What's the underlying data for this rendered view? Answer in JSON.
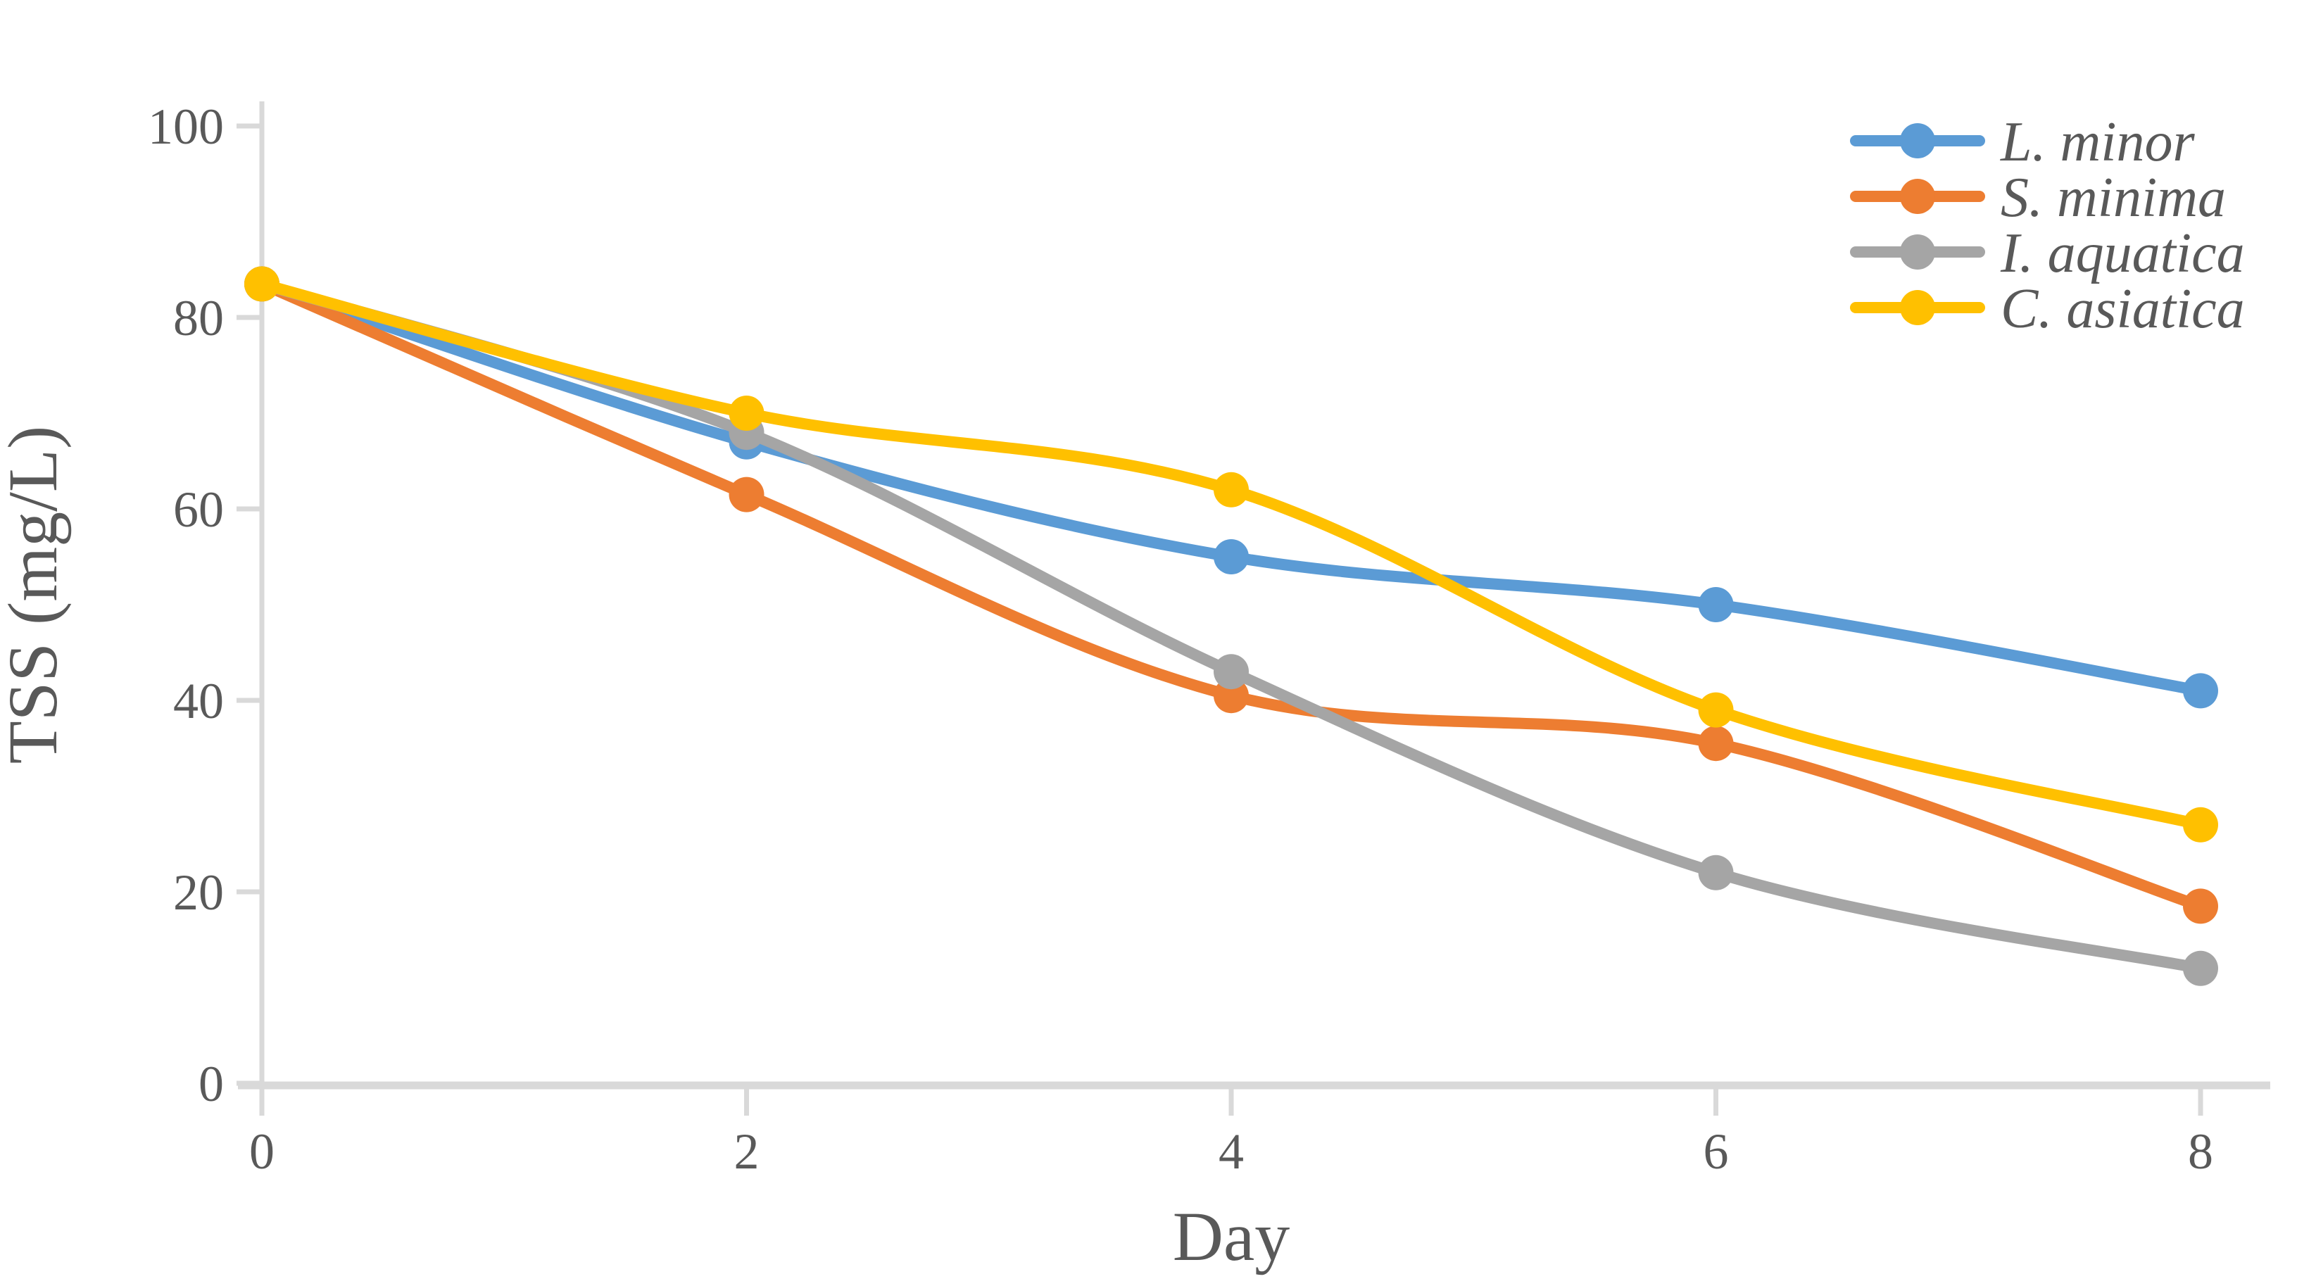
{
  "chart_data": {
    "type": "line",
    "title": "",
    "xlabel": "Day",
    "ylabel": "TSS (mg/L)",
    "x": [
      0,
      2,
      4,
      6,
      8
    ],
    "x_tick_labels": [
      "0",
      "2",
      "4",
      "6",
      "8"
    ],
    "y_tick_labels": [
      "0",
      "20",
      "40",
      "60",
      "80",
      "100"
    ],
    "y_ticks": [
      0,
      20,
      40,
      60,
      80,
      100
    ],
    "xlim": [
      0,
      8
    ],
    "ylim": [
      0,
      100
    ],
    "grid": false,
    "smooth": true,
    "legend_position": "top-right",
    "series": [
      {
        "name": "L. minor",
        "color": "#5B9BD5",
        "values": [
          83.5,
          67,
          55,
          50,
          41
        ]
      },
      {
        "name": "S. minima",
        "color": "#ED7D31",
        "values": [
          83.5,
          61.5,
          40.5,
          35.5,
          18.5
        ]
      },
      {
        "name": "I. aquatica",
        "color": "#A5A5A5",
        "values": [
          83.5,
          68,
          43,
          22,
          12
        ]
      },
      {
        "name": "C. asiatica",
        "color": "#FFC000",
        "values": [
          83.5,
          70,
          62,
          39,
          27
        ]
      }
    ],
    "colors": {
      "text": "#595959",
      "axis": "#D9D9D9",
      "background": "#FFFFFF"
    }
  }
}
